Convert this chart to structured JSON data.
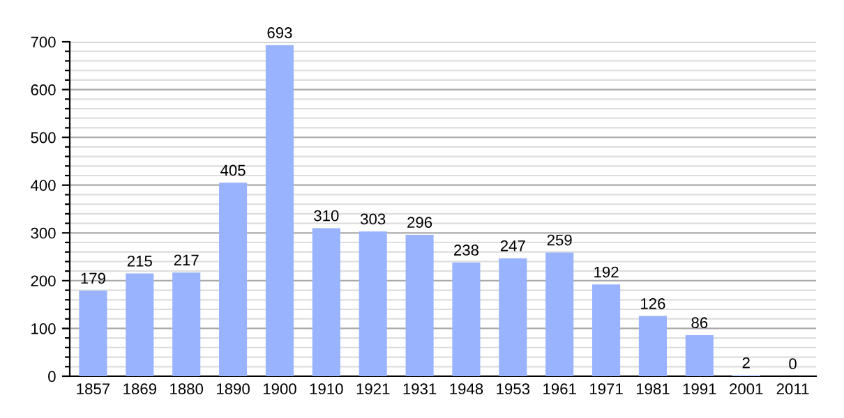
{
  "chart_data": {
    "type": "bar",
    "categories": [
      "1857",
      "1869",
      "1880",
      "1890",
      "1900",
      "1910",
      "1921",
      "1931",
      "1948",
      "1953",
      "1961",
      "1971",
      "1981",
      "1991",
      "2001",
      "2011"
    ],
    "values": [
      179,
      215,
      217,
      405,
      693,
      310,
      303,
      296,
      238,
      247,
      259,
      192,
      126,
      86,
      2,
      0
    ],
    "color": "#99b3ff",
    "ylim": [
      0,
      700
    ],
    "yticks": [
      0,
      {
        "value": 20,
        "label": null
      },
      {
        "value": 40,
        "label": null
      },
      {
        "value": 60,
        "label": null
      },
      {
        "value": 80,
        "label": null
      },
      100,
      {
        "value": 120,
        "label": null
      },
      {
        "value": 140,
        "label": null
      },
      {
        "value": 160,
        "label": null
      },
      {
        "value": 180,
        "label": null
      },
      200,
      {
        "value": 220,
        "label": null
      },
      {
        "value": 240,
        "label": null
      },
      {
        "value": 260,
        "label": null
      },
      {
        "value": 280,
        "label": null
      },
      300,
      {
        "value": 320,
        "label": null
      },
      {
        "value": 340,
        "label": null
      },
      {
        "value": 360,
        "label": null
      },
      {
        "value": 380,
        "label": null
      },
      400,
      {
        "value": 420,
        "label": null
      },
      {
        "value": 440,
        "label": null
      },
      {
        "value": 460,
        "label": null
      },
      {
        "value": 480,
        "label": null
      },
      500,
      {
        "value": 520,
        "label": null
      },
      {
        "value": 540,
        "label": null
      },
      {
        "value": 560,
        "label": null
      },
      {
        "value": 580,
        "label": null
      },
      600,
      {
        "value": 620,
        "label": null
      },
      {
        "value": 640,
        "label": null
      },
      {
        "value": 660,
        "label": null
      },
      {
        "value": 680,
        "label": null
      },
      700
    ],
    "grid": "y",
    "data_labels": true
  }
}
